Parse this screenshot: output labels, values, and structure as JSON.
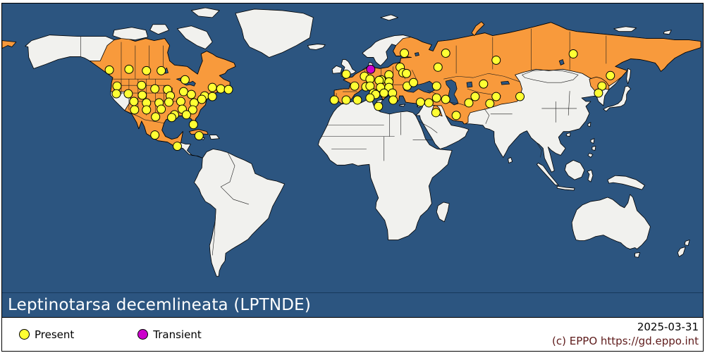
{
  "title": {
    "text": "Leptinotarsa decemlineata (LPTNDE)"
  },
  "legend": [
    {
      "label": "Present",
      "status": "present",
      "color": "#FFFF33"
    },
    {
      "label": "Transient",
      "status": "transient",
      "color": "#CC00CC"
    }
  ],
  "footer": {
    "date": "2025-03-31",
    "copyright": "(c) EPPO https://gd.eppo.int"
  },
  "colors": {
    "ocean": "#2C5580",
    "land": "#F1F1EE",
    "country_present": "#F89A3C",
    "dot_present": "#FFFF33",
    "dot_transient": "#CC00CC",
    "border": "#000000"
  },
  "map_points": {
    "present": [
      [
        153,
        95
      ],
      [
        181,
        94
      ],
      [
        206,
        96
      ],
      [
        227,
        96
      ],
      [
        261,
        109
      ],
      [
        300,
        120
      ],
      [
        312,
        122
      ],
      [
        323,
        123
      ],
      [
        164,
        118
      ],
      [
        199,
        117
      ],
      [
        218,
        122
      ],
      [
        236,
        123
      ],
      [
        163,
        129
      ],
      [
        180,
        129
      ],
      [
        200,
        131
      ],
      [
        240,
        132
      ],
      [
        259,
        126
      ],
      [
        270,
        130
      ],
      [
        289,
        132
      ],
      [
        300,
        133
      ],
      [
        188,
        140
      ],
      [
        206,
        142
      ],
      [
        224,
        142
      ],
      [
        238,
        141
      ],
      [
        255,
        140
      ],
      [
        274,
        142
      ],
      [
        285,
        137
      ],
      [
        189,
        152
      ],
      [
        206,
        152
      ],
      [
        227,
        151
      ],
      [
        257,
        151
      ],
      [
        272,
        152
      ],
      [
        246,
        159
      ],
      [
        263,
        159
      ],
      [
        219,
        162
      ],
      [
        242,
        163
      ],
      [
        273,
        173
      ],
      [
        281,
        189
      ],
      [
        218,
        188
      ],
      [
        250,
        204
      ],
      [
        574,
        71
      ],
      [
        633,
        71
      ],
      [
        622,
        91
      ],
      [
        568,
        91
      ],
      [
        572,
        99
      ],
      [
        577,
        100
      ],
      [
        491,
        101
      ],
      [
        517,
        104
      ],
      [
        525,
        108
      ],
      [
        541,
        109
      ],
      [
        552,
        102
      ],
      [
        552,
        112
      ],
      [
        538,
        110
      ],
      [
        503,
        118
      ],
      [
        519,
        119
      ],
      [
        525,
        118
      ],
      [
        540,
        120
      ],
      [
        552,
        120
      ],
      [
        578,
        118
      ],
      [
        587,
        113
      ],
      [
        620,
        118
      ],
      [
        530,
        128
      ],
      [
        533,
        130
      ],
      [
        545,
        128
      ],
      [
        557,
        128
      ],
      [
        525,
        135
      ],
      [
        558,
        138
      ],
      [
        537,
        147
      ],
      [
        474,
        138
      ],
      [
        491,
        138
      ],
      [
        507,
        138
      ],
      [
        597,
        141
      ],
      [
        609,
        142
      ],
      [
        620,
        135
      ],
      [
        633,
        137
      ],
      [
        619,
        156
      ],
      [
        648,
        160
      ],
      [
        687,
        115
      ],
      [
        705,
        133
      ],
      [
        739,
        133
      ],
      [
        675,
        133
      ],
      [
        666,
        142
      ],
      [
        696,
        143
      ],
      [
        705,
        81
      ],
      [
        815,
        72
      ],
      [
        868,
        103
      ],
      [
        856,
        118
      ],
      [
        851,
        128
      ]
    ],
    "transient": [
      [
        526,
        94
      ]
    ]
  }
}
